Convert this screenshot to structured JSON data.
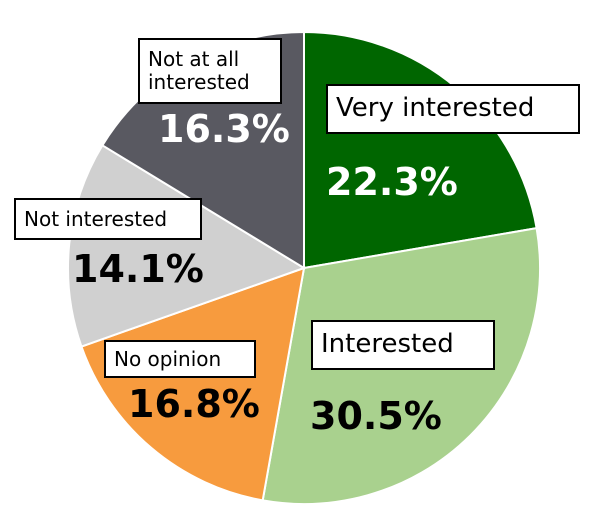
{
  "chart_data": {
    "type": "pie",
    "categories": [
      "Very interested",
      "Interested",
      "No opinion",
      "Not interested",
      "Not at all interested"
    ],
    "values": [
      22.3,
      30.5,
      16.8,
      14.1,
      16.3
    ],
    "value_labels": [
      "22.3%",
      "30.5%",
      "16.8%",
      "14.1%",
      "16.3%"
    ],
    "colors": [
      "#006600",
      "#a9d18e",
      "#f79b3e",
      "#d0d0d0",
      "#595961"
    ]
  }
}
